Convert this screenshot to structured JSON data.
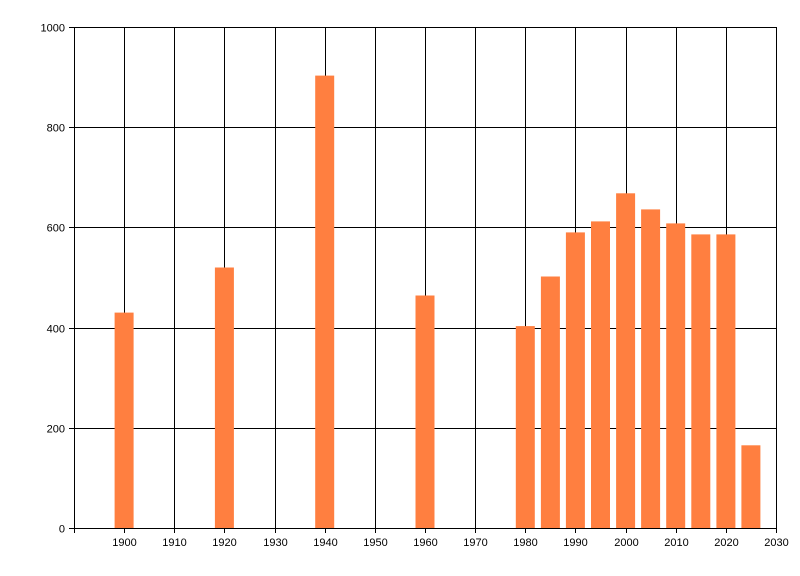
{
  "chart_data": {
    "type": "bar",
    "x": [
      1900,
      1920,
      1940,
      1960,
      1980,
      1985,
      1990,
      1995,
      2000,
      2005,
      2010,
      2015,
      2020,
      2025
    ],
    "series": [
      {
        "values": [
          430,
          520,
          903,
          464,
          403,
          502,
          590,
          612,
          668,
          636,
          608,
          586,
          586,
          165
        ],
        "color": "#ff7f40"
      }
    ],
    "xlim": [
      1890,
      2030
    ],
    "ylim": [
      0,
      1000
    ],
    "x_ticks": [
      1900,
      1910,
      1920,
      1930,
      1940,
      1950,
      1960,
      1970,
      1980,
      1990,
      2000,
      2010,
      2020,
      2030
    ],
    "y_ticks": [
      0,
      200,
      400,
      600,
      800,
      1000
    ],
    "grid": true,
    "legend": "none",
    "title": "",
    "xlabel": "",
    "ylabel": ""
  }
}
